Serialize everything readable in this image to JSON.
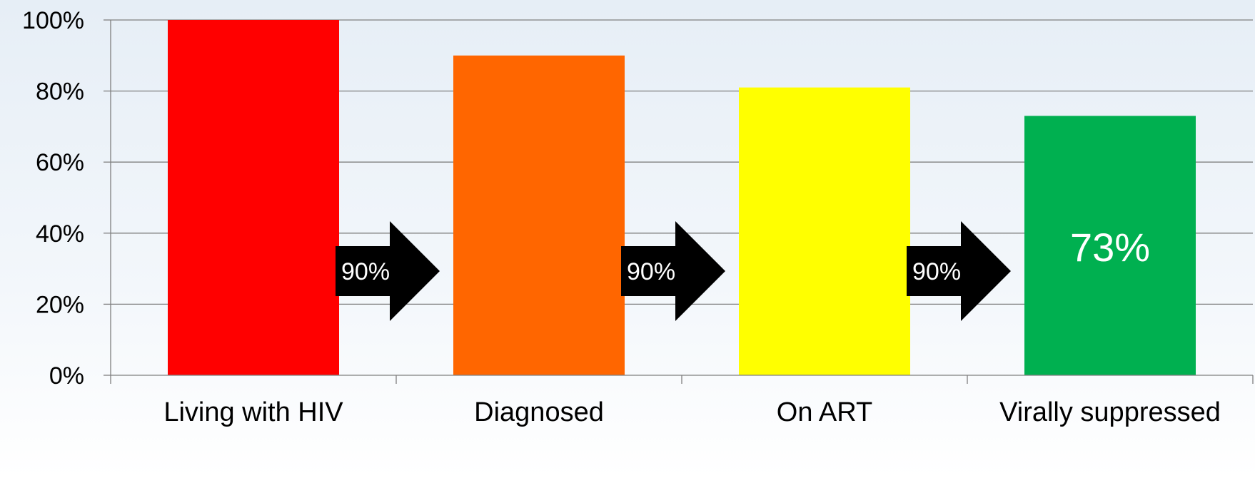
{
  "chart_data": {
    "type": "bar",
    "title": "",
    "xlabel": "",
    "ylabel": "",
    "ylim": [
      0,
      100
    ],
    "yticks": [
      "0%",
      "20%",
      "40%",
      "60%",
      "80%",
      "100%"
    ],
    "grid": true,
    "categories": [
      "Living with HIV",
      "Diagnosed",
      "On ART",
      "Virally suppressed"
    ],
    "values": [
      100,
      90,
      81,
      73
    ],
    "colors": [
      "#ff0000",
      "#ff6600",
      "#ffff00",
      "#00b050"
    ],
    "bar_labels": [
      "",
      "",
      "",
      "73%"
    ],
    "step_arrows": [
      "90%",
      "90%",
      "90%"
    ]
  }
}
